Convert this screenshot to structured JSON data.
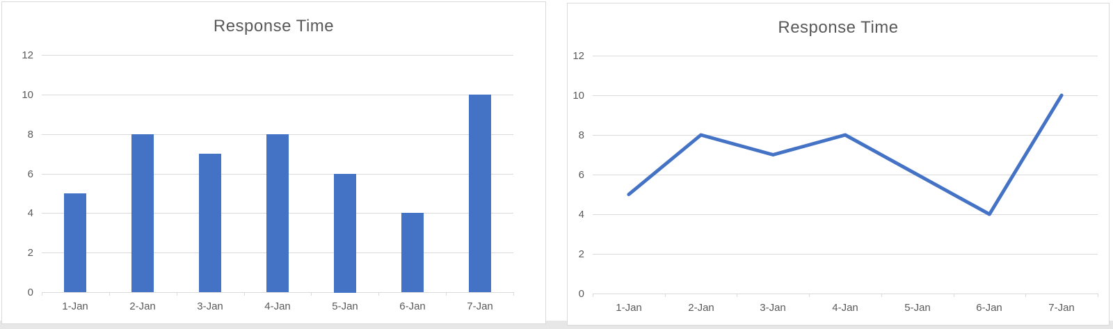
{
  "page": {
    "background_strip_color": "#e7e7e7"
  },
  "colors": {
    "accent": "#4472C4",
    "title_text": "#595959",
    "axis_text": "#595959",
    "gridline": "#d9d9d9",
    "panel_border": "#d9d9d9",
    "panel_background": "#ffffff"
  },
  "chart_data": [
    {
      "type": "bar",
      "title": "Response Time",
      "categories": [
        "1-Jan",
        "2-Jan",
        "3-Jan",
        "4-Jan",
        "5-Jan",
        "6-Jan",
        "7-Jan"
      ],
      "values": [
        5,
        8,
        7,
        8,
        6,
        4,
        10
      ],
      "xlabel": "",
      "ylabel": "",
      "ylim": [
        0,
        12
      ],
      "yticks": [
        0,
        2,
        4,
        6,
        8,
        10,
        12
      ],
      "grid": true,
      "legend": "none",
      "series_color": "#4472C4"
    },
    {
      "type": "line",
      "title": "Response Time",
      "categories": [
        "1-Jan",
        "2-Jan",
        "3-Jan",
        "4-Jan",
        "5-Jan",
        "6-Jan",
        "7-Jan"
      ],
      "values": [
        5,
        8,
        7,
        8,
        6,
        4,
        10
      ],
      "xlabel": "",
      "ylabel": "",
      "ylim": [
        0,
        12
      ],
      "yticks": [
        0,
        2,
        4,
        6,
        8,
        10,
        12
      ],
      "grid": true,
      "legend": "none",
      "series_color": "#4472C4"
    }
  ]
}
